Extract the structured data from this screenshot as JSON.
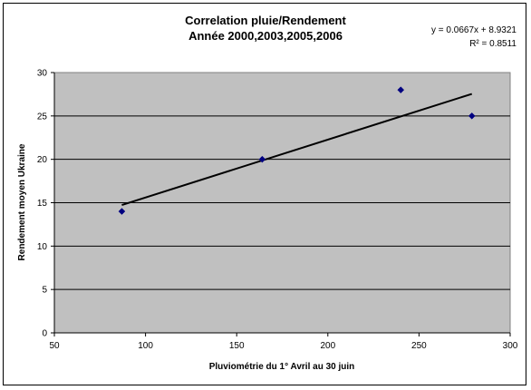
{
  "chart_data": {
    "type": "scatter",
    "title": [
      "Correlation pluie/Rendement",
      "Année 2000,2003,2005,2006"
    ],
    "xlabel": "Pluviométrie du 1° Avril au 30 juin",
    "ylabel": "Rendement moyen Ukraine",
    "xlim": [
      50,
      300
    ],
    "ylim": [
      0,
      30
    ],
    "xticks": [
      50,
      100,
      150,
      200,
      250,
      300
    ],
    "yticks": [
      0,
      5,
      10,
      15,
      20,
      25,
      30
    ],
    "grid": "horizontal",
    "plot_background": "#C0C0C0",
    "series": [
      {
        "color": "#000080",
        "marker": "diamond",
        "points": [
          {
            "x": 87,
            "y": 14
          },
          {
            "x": 164,
            "y": 20
          },
          {
            "x": 240,
            "y": 28
          },
          {
            "x": 279,
            "y": 25
          }
        ]
      }
    ],
    "trendline": {
      "type": "linear",
      "slope": 0.0667,
      "intercept": 8.9321,
      "x_range": [
        87,
        279
      ],
      "equation_label": "y = 0.0667x + 8.9321",
      "r2_label": "R² = 0.8511"
    }
  }
}
